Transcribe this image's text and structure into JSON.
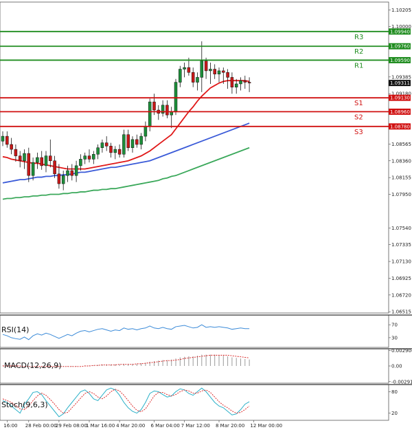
{
  "chart_data": {
    "type": "candlestick",
    "price_axis": {
      "ticks": [
        1.10205,
        1.1,
        1.09385,
        1.0918,
        1.08565,
        1.0836,
        1.08155,
        1.0795,
        1.0754,
        1.07335,
        1.0713,
        1.06925,
        1.0672,
        1.06515
      ],
      "tick_labels": [
        "1.10205",
        "1.10000",
        "1.09385",
        "1.09180",
        "1.08565",
        "1.08360",
        "1.08155",
        "1.07950",
        "1.07540",
        "1.07335",
        "1.07130",
        "1.06925",
        "1.06720",
        "1.06515"
      ],
      "range": [
        1.065,
        1.103
      ],
      "last_price": 1.09311,
      "last_price_label": "1.09311"
    },
    "levels": [
      {
        "name": "R3",
        "value": 1.0994,
        "label": "1.09940",
        "color": "#1e8c1e"
      },
      {
        "name": "R2",
        "value": 1.0976,
        "label": "1.09760",
        "color": "#1e8c1e"
      },
      {
        "name": "R1",
        "value": 1.0959,
        "label": "1.09590",
        "color": "#1e8c1e"
      },
      {
        "name": "S1",
        "value": 1.0913,
        "label": "1.09130",
        "color": "#d01010"
      },
      {
        "name": "S2",
        "value": 1.0896,
        "label": "1.08960",
        "color": "#d01010"
      },
      {
        "name": "S3",
        "value": 1.0878,
        "label": "1.08780",
        "color": "#d01010"
      }
    ],
    "x_axis": {
      "labels": [
        "16:00",
        "28 Feb 00:00",
        "29 Feb 08:00",
        "1 Mar 16:00",
        "4 Mar 20:00",
        "6 Mar 04:00",
        "7 Mar 12:00",
        "8 Mar 20:00",
        "12 Mar 00:00"
      ],
      "label_bars": [
        1,
        6,
        13,
        20,
        27,
        35,
        42,
        50,
        58
      ]
    },
    "candles": [
      [
        1.086,
        1.0872,
        1.0854,
        1.0866
      ],
      [
        1.0866,
        1.0872,
        1.0852,
        1.0856
      ],
      [
        1.0856,
        1.0864,
        1.0844,
        1.085
      ],
      [
        1.085,
        1.0856,
        1.0835,
        1.0842
      ],
      [
        1.0842,
        1.0848,
        1.0828,
        1.0836
      ],
      [
        1.0836,
        1.085,
        1.0826,
        1.0845
      ],
      [
        1.0845,
        1.0852,
        1.081,
        1.0818
      ],
      [
        1.0818,
        1.084,
        1.0812,
        1.0834
      ],
      [
        1.0834,
        1.0846,
        1.0826,
        1.084
      ],
      [
        1.084,
        1.0848,
        1.0825,
        1.083
      ],
      [
        1.083,
        1.0848,
        1.0822,
        1.0842
      ],
      [
        1.0842,
        1.0862,
        1.0828,
        1.0836
      ],
      [
        1.0836,
        1.0842,
        1.0815,
        1.082
      ],
      [
        1.082,
        1.0832,
        1.0802,
        1.0808
      ],
      [
        1.0808,
        1.0824,
        1.08,
        1.0818
      ],
      [
        1.0818,
        1.083,
        1.081,
        1.0824
      ],
      [
        1.0824,
        1.0832,
        1.0812,
        1.0818
      ],
      [
        1.0818,
        1.0836,
        1.081,
        1.083
      ],
      [
        1.083,
        1.0844,
        1.0824,
        1.0838
      ],
      [
        1.0838,
        1.0846,
        1.0832,
        1.0842
      ],
      [
        1.0842,
        1.085,
        1.0834,
        1.0838
      ],
      [
        1.0838,
        1.0848,
        1.0832,
        1.0844
      ],
      [
        1.0844,
        1.0856,
        1.0838,
        1.0852
      ],
      [
        1.0852,
        1.0862,
        1.0846,
        1.0858
      ],
      [
        1.0858,
        1.0866,
        1.0848,
        1.0854
      ],
      [
        1.0854,
        1.0858,
        1.084,
        1.0846
      ],
      [
        1.0846,
        1.0854,
        1.0838,
        1.085
      ],
      [
        1.085,
        1.0856,
        1.084,
        1.0844
      ],
      [
        1.0844,
        1.0874,
        1.084,
        1.0868
      ],
      [
        1.0868,
        1.0874,
        1.0848,
        1.0852
      ],
      [
        1.0852,
        1.0866,
        1.0846,
        1.0862
      ],
      [
        1.0862,
        1.0868,
        1.0852,
        1.0856
      ],
      [
        1.0856,
        1.087,
        1.085,
        1.0866
      ],
      [
        1.0866,
        1.0884,
        1.086,
        1.0878
      ],
      [
        1.0878,
        1.0912,
        1.0872,
        1.0908
      ],
      [
        1.0908,
        1.0918,
        1.0892,
        1.0898
      ],
      [
        1.0898,
        1.0904,
        1.0886,
        1.0894
      ],
      [
        1.0894,
        1.091,
        1.089,
        1.0904
      ],
      [
        1.0904,
        1.091,
        1.0888,
        1.0892
      ],
      [
        1.0892,
        1.0902,
        1.0876,
        1.0896
      ],
      [
        1.0896,
        1.0936,
        1.0892,
        1.0932
      ],
      [
        1.0932,
        1.0952,
        1.0926,
        1.0948
      ],
      [
        1.0948,
        1.0956,
        1.0938,
        1.095
      ],
      [
        1.095,
        1.0962,
        1.094,
        1.0944
      ],
      [
        1.0944,
        1.095,
        1.0926,
        1.0932
      ],
      [
        1.0932,
        1.0944,
        1.0922,
        1.0938
      ],
      [
        1.0938,
        1.0982,
        1.092,
        1.0958
      ],
      [
        1.0958,
        1.0962,
        1.0936,
        1.0946
      ],
      [
        1.0946,
        1.0956,
        1.093,
        1.0948
      ],
      [
        1.0948,
        1.0954,
        1.0936,
        1.0942
      ],
      [
        1.0942,
        1.095,
        1.0932,
        1.0946
      ],
      [
        1.0946,
        1.095,
        1.093,
        1.0944
      ],
      [
        1.0944,
        1.0948,
        1.0924,
        1.0938
      ],
      [
        1.0938,
        1.0944,
        1.0918,
        1.0926
      ],
      [
        1.0926,
        1.0936,
        1.0918,
        1.093
      ],
      [
        1.093,
        1.0938,
        1.0922,
        1.0934
      ],
      [
        1.0934,
        1.094,
        1.0924,
        1.0932
      ],
      [
        1.0932,
        1.0938,
        1.092,
        1.0931
      ]
    ],
    "moving_averages": [
      {
        "color": "#e01818",
        "values": [
          1.0841,
          1.084,
          1.0838,
          1.0837,
          1.0836,
          1.0835,
          1.0834,
          1.0833,
          1.0833,
          1.0832,
          1.0831,
          1.083,
          1.0829,
          1.0828,
          1.0827,
          1.0826,
          1.0826,
          1.0826,
          1.0826,
          1.0826,
          1.0827,
          1.0828,
          1.0829,
          1.083,
          1.0831,
          1.0832,
          1.0833,
          1.0834,
          1.0835,
          1.0836,
          1.0838,
          1.084,
          1.0842,
          1.0845,
          1.0848,
          1.0852,
          1.0856,
          1.086,
          1.0864,
          1.0868,
          1.0875,
          1.0882,
          1.0889,
          1.0896,
          1.0902,
          1.0909,
          1.0915,
          1.092,
          1.0925,
          1.0928,
          1.0931,
          1.0933,
          1.0934,
          1.0934,
          1.0934,
          1.0934,
          1.0934,
          1.0933
        ]
      },
      {
        "color": "#3a5ad8",
        "values": [
          1.0809,
          1.081,
          1.0811,
          1.0812,
          1.0813,
          1.0813,
          1.0814,
          1.0815,
          1.0816,
          1.0816,
          1.0817,
          1.0817,
          1.0818,
          1.0818,
          1.0819,
          1.0819,
          1.082,
          1.0821,
          1.0822,
          1.0822,
          1.0823,
          1.0824,
          1.0825,
          1.0826,
          1.0827,
          1.0828,
          1.0828,
          1.0829,
          1.083,
          1.0831,
          1.0832,
          1.0833,
          1.0834,
          1.0835,
          1.0836,
          1.0838,
          1.084,
          1.0842,
          1.0844,
          1.0846,
          1.0848,
          1.085,
          1.0852,
          1.0854,
          1.0856,
          1.0858,
          1.086,
          1.0862,
          1.0864,
          1.0866,
          1.0868,
          1.087,
          1.0872,
          1.0874,
          1.0876,
          1.0878,
          1.088,
          1.0882
        ]
      },
      {
        "color": "#3aa85a",
        "values": [
          1.0789,
          1.079,
          1.079,
          1.0791,
          1.0791,
          1.0792,
          1.0792,
          1.0793,
          1.0793,
          1.0794,
          1.0794,
          1.0795,
          1.0795,
          1.0795,
          1.0796,
          1.0796,
          1.0797,
          1.0797,
          1.0798,
          1.0798,
          1.0799,
          1.08,
          1.08,
          1.0801,
          1.0801,
          1.0802,
          1.0802,
          1.0803,
          1.0804,
          1.0805,
          1.0806,
          1.0807,
          1.0808,
          1.0809,
          1.081,
          1.0811,
          1.0812,
          1.0814,
          1.0815,
          1.0817,
          1.0818,
          1.082,
          1.0822,
          1.0824,
          1.0826,
          1.0828,
          1.083,
          1.0832,
          1.0834,
          1.0836,
          1.0838,
          1.084,
          1.0842,
          1.0844,
          1.0846,
          1.0848,
          1.085,
          1.0852
        ]
      }
    ],
    "rsi": {
      "title": "RSI(14)",
      "ticks": [
        70,
        30
      ],
      "tick_labels": [
        "70",
        "30"
      ],
      "range": [
        0,
        100
      ],
      "color": "#3a8ad8",
      "values": [
        40,
        36,
        30,
        27,
        25,
        32,
        24,
        36,
        42,
        38,
        44,
        40,
        34,
        28,
        34,
        40,
        36,
        44,
        50,
        52,
        48,
        52,
        56,
        58,
        54,
        50,
        54,
        52,
        60,
        56,
        58,
        54,
        58,
        60,
        66,
        60,
        58,
        62,
        58,
        56,
        64,
        66,
        68,
        64,
        60,
        62,
        70,
        62,
        64,
        62,
        64,
        62,
        60,
        56,
        58,
        60,
        58,
        58
      ]
    },
    "macd": {
      "title": "MACD(12,26,9)",
      "ticks": [
        0.002904,
        0.0,
        -0.002914
      ],
      "tick_labels": [
        "0.002904",
        "0.00",
        "-0.002914"
      ],
      "range": [
        -0.0032,
        0.0032
      ],
      "hist_color": "#9a9a9a",
      "signal_color": "#d81818",
      "hist": [
        0.0001,
        0.0001,
        0.0,
        0.0,
        -0.0001,
        -0.0001,
        -0.0001,
        -0.0001,
        -0.0001,
        -0.0001,
        -0.0001,
        -0.0001,
        -0.0001,
        -0.0002,
        -0.0001,
        -0.0001,
        -0.0001,
        -0.0001,
        0.0,
        0.0001,
        0.0001,
        0.0001,
        0.0002,
        0.0003,
        0.0003,
        0.0003,
        0.0003,
        0.0003,
        0.0004,
        0.0004,
        0.0004,
        0.0004,
        0.0005,
        0.0006,
        0.0008,
        0.0009,
        0.001,
        0.0011,
        0.0011,
        0.0012,
        0.0014,
        0.0016,
        0.0017,
        0.0018,
        0.0018,
        0.0019,
        0.0021,
        0.0021,
        0.0021,
        0.0021,
        0.002,
        0.0019,
        0.0018,
        0.0016,
        0.0015,
        0.0014,
        0.0013,
        0.0012
      ],
      "signal": [
        0.0,
        0.0,
        0.0,
        0.0,
        0.0,
        -0.0001,
        -0.0001,
        -0.0001,
        -0.0001,
        -0.0001,
        -0.0001,
        -0.0001,
        -0.0001,
        -0.0001,
        -0.0001,
        -0.0001,
        -0.0001,
        -0.0001,
        -0.0001,
        0.0,
        0.0,
        0.0001,
        0.0001,
        0.0002,
        0.0002,
        0.0002,
        0.0002,
        0.0003,
        0.0003,
        0.0003,
        0.0003,
        0.0004,
        0.0004,
        0.0005,
        0.0006,
        0.0007,
        0.0008,
        0.0009,
        0.001,
        0.001,
        0.0011,
        0.0012,
        0.0014,
        0.0015,
        0.0016,
        0.0017,
        0.0018,
        0.0019,
        0.002,
        0.002,
        0.002,
        0.002,
        0.002,
        0.0019,
        0.0018,
        0.0017,
        0.0016,
        0.0015
      ]
    },
    "stoch": {
      "title": "Stoch(9,6,3)",
      "ticks": [
        80,
        20
      ],
      "tick_labels": [
        "80",
        "20"
      ],
      "range": [
        0,
        100
      ],
      "main_color": "#2ab0c8",
      "signal_color": "#d81818",
      "main": [
        55,
        50,
        40,
        30,
        20,
        45,
        60,
        78,
        80,
        72,
        55,
        40,
        25,
        10,
        18,
        35,
        50,
        65,
        80,
        85,
        75,
        60,
        55,
        70,
        85,
        90,
        85,
        70,
        50,
        35,
        25,
        20,
        30,
        50,
        75,
        82,
        80,
        72,
        65,
        68,
        80,
        88,
        85,
        75,
        70,
        80,
        90,
        80,
        65,
        50,
        40,
        35,
        25,
        15,
        18,
        30,
        45,
        52
      ],
      "signal": [
        60,
        55,
        50,
        42,
        32,
        30,
        40,
        55,
        68,
        76,
        70,
        58,
        45,
        30,
        20,
        22,
        35,
        48,
        62,
        75,
        80,
        75,
        65,
        60,
        68,
        80,
        87,
        82,
        70,
        55,
        40,
        28,
        24,
        32,
        50,
        68,
        78,
        78,
        72,
        68,
        72,
        80,
        85,
        82,
        76,
        76,
        82,
        85,
        78,
        65,
        52,
        42,
        35,
        26,
        20,
        22,
        30,
        40
      ]
    }
  }
}
